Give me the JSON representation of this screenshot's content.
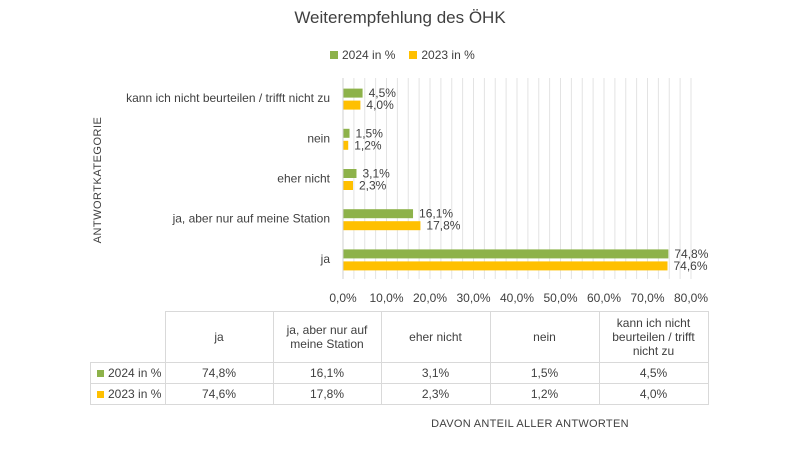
{
  "chart_data": {
    "type": "bar",
    "orientation": "horizontal",
    "title": "Weiterempfehlung des ÖHK",
    "ylabel": "ANTWORTKATEGORIE",
    "xlabel": "DAVON ANTEIL ALLER ANTWORTEN",
    "categories": [
      "ja",
      "ja, aber nur auf meine Station",
      "eher nicht",
      "nein",
      "kann ich nicht beurteilen / trifft nicht zu"
    ],
    "table_headers": [
      "ja",
      "ja, aber nur auf meine Station",
      "eher nicht",
      "nein",
      "kann ich nicht beurteilen / trifft nicht zu"
    ],
    "series": [
      {
        "name": "2024 in %",
        "color": "#8db24a",
        "values": [
          74.8,
          16.1,
          3.1,
          1.5,
          4.5
        ],
        "labels": [
          "74,8%",
          "16,1%",
          "3,1%",
          "1,5%",
          "4,5%"
        ]
      },
      {
        "name": "2023 in %",
        "color": "#ffc000",
        "values": [
          74.6,
          17.8,
          2.3,
          1.2,
          4.0
        ],
        "labels": [
          "74,6%",
          "17,8%",
          "2,3%",
          "1,2%",
          "4,0%"
        ]
      }
    ],
    "xlim": [
      0,
      80
    ],
    "x_ticks": [
      "0,0%",
      "10,0%",
      "20,0%",
      "30,0%",
      "40,0%",
      "50,0%",
      "60,0%",
      "70,0%",
      "80,0%"
    ],
    "grid": true,
    "legend": "top"
  }
}
